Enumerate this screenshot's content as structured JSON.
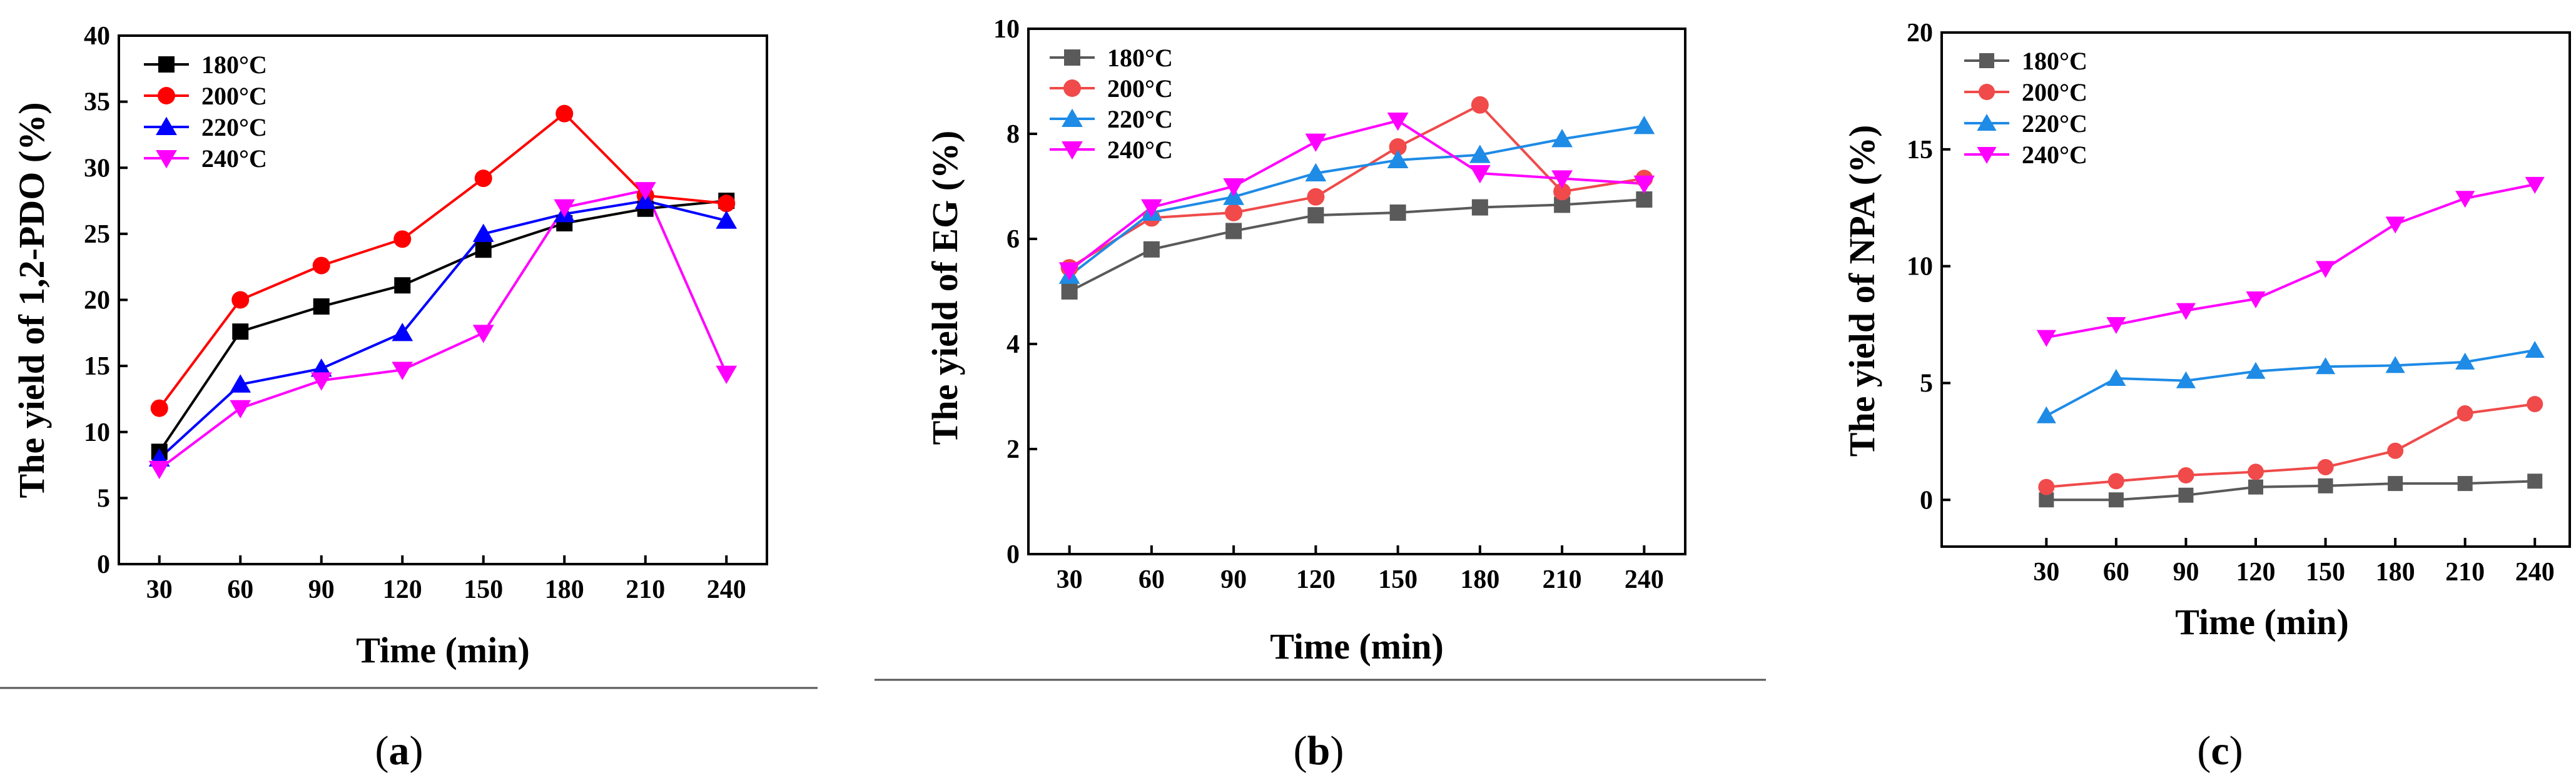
{
  "chart_data": [
    {
      "type": "line",
      "panel": "a",
      "caption": "(a)",
      "caption_letter": "a",
      "xlabel": "Time (min)",
      "ylabel": "The yield of 1,2-PDO (%)",
      "x": [
        30,
        60,
        90,
        120,
        150,
        180,
        210,
        240
      ],
      "xlim": [
        15,
        255
      ],
      "ylim": [
        0,
        40
      ],
      "yticks": [
        0,
        5,
        10,
        15,
        20,
        25,
        30,
        35,
        40
      ],
      "legend_position": "top-left",
      "series": [
        {
          "name": "180°C",
          "color": "#000000",
          "marker": "square",
          "values": [
            8.5,
            17.6,
            19.5,
            21.1,
            23.8,
            25.8,
            26.9,
            27.5
          ]
        },
        {
          "name": "200°C",
          "color": "#ff0000",
          "marker": "circle",
          "values": [
            11.8,
            20.0,
            22.6,
            24.6,
            29.2,
            34.1,
            27.9,
            27.3
          ]
        },
        {
          "name": "220°C",
          "color": "#0000ff",
          "marker": "triangle-up",
          "values": [
            8.0,
            13.6,
            14.8,
            17.5,
            25.0,
            26.5,
            27.5,
            26.0
          ]
        },
        {
          "name": "240°C",
          "color": "#ff00ff",
          "marker": "triangle-down",
          "values": [
            7.2,
            11.8,
            13.9,
            14.7,
            17.5,
            27.0,
            28.3,
            14.4
          ]
        }
      ]
    },
    {
      "type": "line",
      "panel": "b",
      "caption": "(b)",
      "caption_letter": "b",
      "xlabel": "Time (min)",
      "ylabel": "The yield of EG (%)",
      "x": [
        30,
        60,
        90,
        120,
        150,
        180,
        210,
        240
      ],
      "xlim": [
        15,
        255
      ],
      "ylim": [
        0,
        10
      ],
      "yticks": [
        0,
        2,
        4,
        6,
        8,
        10
      ],
      "legend_position": "top-left",
      "series": [
        {
          "name": "180°C",
          "color": "#5a5a5a",
          "marker": "square",
          "values": [
            5.0,
            5.8,
            6.15,
            6.45,
            6.5,
            6.6,
            6.65,
            6.75
          ]
        },
        {
          "name": "200°C",
          "color": "#f04a4a",
          "marker": "circle",
          "values": [
            5.45,
            6.4,
            6.5,
            6.8,
            7.75,
            8.55,
            6.9,
            7.15
          ]
        },
        {
          "name": "220°C",
          "color": "#1e8be6",
          "marker": "triangle-up",
          "values": [
            5.3,
            6.5,
            6.8,
            7.25,
            7.5,
            7.6,
            7.9,
            8.15
          ]
        },
        {
          "name": "240°C",
          "color": "#ff00ff",
          "marker": "triangle-down",
          "values": [
            5.4,
            6.6,
            7.0,
            7.85,
            8.25,
            7.25,
            7.15,
            7.05
          ]
        }
      ]
    },
    {
      "type": "line",
      "panel": "c",
      "caption": "(c)",
      "caption_letter": "c",
      "xlabel": "Time (min)",
      "ylabel": "The yield of NPA (%)",
      "x": [
        30,
        60,
        90,
        120,
        150,
        180,
        210,
        240
      ],
      "xlim": [
        -15,
        255
      ],
      "ylim": [
        -2,
        20
      ],
      "yticks": [
        0,
        5,
        10,
        15,
        20
      ],
      "legend_position": "top-left",
      "series": [
        {
          "name": "180°C",
          "color": "#5a5a5a",
          "marker": "square",
          "values": [
            0.0,
            0.0,
            0.2,
            0.55,
            0.6,
            0.7,
            0.7,
            0.8
          ]
        },
        {
          "name": "200°C",
          "color": "#f04a4a",
          "marker": "circle",
          "values": [
            0.55,
            0.8,
            1.05,
            1.2,
            1.4,
            2.1,
            3.7,
            4.1
          ]
        },
        {
          "name": "220°C",
          "color": "#1e8be6",
          "marker": "triangle-up",
          "values": [
            3.6,
            5.2,
            5.1,
            5.5,
            5.7,
            5.75,
            5.9,
            6.4
          ]
        },
        {
          "name": "240°C",
          "color": "#ff00ff",
          "marker": "triangle-down",
          "values": [
            6.95,
            7.5,
            8.1,
            8.6,
            9.9,
            11.8,
            12.9,
            13.5
          ]
        }
      ]
    }
  ]
}
